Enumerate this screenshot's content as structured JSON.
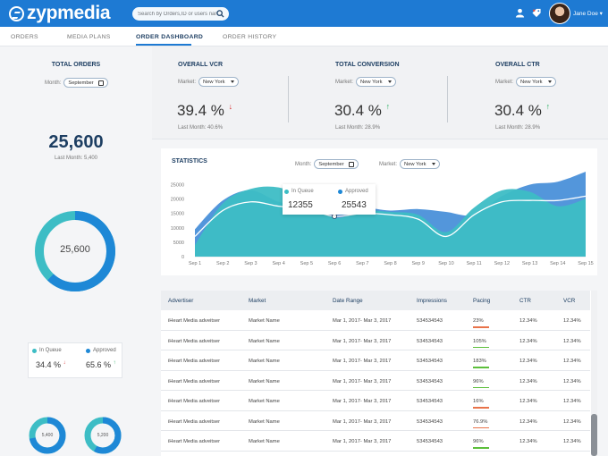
{
  "header": {
    "brand": "zypmedia",
    "search_placeholder": "Search by Orders,ID or users name",
    "username": "Jane Doe"
  },
  "tabs": [
    {
      "label": "ORDERS"
    },
    {
      "label": "MEDIA PLANS"
    },
    {
      "label": "ORDER DASHBOARD"
    },
    {
      "label": "ORDER HISTORY"
    }
  ],
  "left": {
    "title": "TOTAL ORDERS",
    "month_label": "Month:",
    "month_value": "September",
    "total": "25,600",
    "last_month": "Last Month: 5,400",
    "donut_value": "25,600",
    "donut_fraction": 0.62,
    "queue_label": "In Queue",
    "approved_label": "Approved",
    "queue_value": "34.4 %",
    "approved_value": "65.6 %",
    "small_donuts": [
      {
        "value": "5,400",
        "fraction": 0.72
      },
      {
        "value": "5,200",
        "fraction": 0.58
      }
    ]
  },
  "kpis": [
    {
      "title": "OVERALL VCR",
      "market_label": "Market:",
      "market": "New York",
      "value": "39.4 %",
      "trend": "down",
      "last": "Last Month: 40.6%"
    },
    {
      "title": "TOTAL CONVERSION",
      "market_label": "Market:",
      "market": "New York",
      "value": "30.4 %",
      "trend": "up",
      "last": "Last Month: 28.9%"
    },
    {
      "title": "OVERALL CTR",
      "market_label": "Market:",
      "market": "New York",
      "value": "30.4 %",
      "trend": "up",
      "last": "Last Month: 28.9%"
    }
  ],
  "statistics": {
    "title": "STATISTICS",
    "month_label": "Month:",
    "month_value": "September",
    "market_label": "Market:",
    "market_value": "New York",
    "tooltip": {
      "queue_label": "In Queue",
      "approved_label": "Approved",
      "queue_value": "12355",
      "approved_value": "25543"
    }
  },
  "chart_data": {
    "type": "area",
    "x": [
      "Sep 1",
      "Sep 2",
      "Sep 3",
      "Sep 4",
      "Sep 5",
      "Sep 6",
      "Sep 7",
      "Sep 8",
      "Sep 9",
      "Sep 10",
      "Sep 11",
      "Sep 12",
      "Sep 13",
      "Sep 14",
      "Sep 15"
    ],
    "yticks": [
      0,
      5000,
      10000,
      15000,
      20000,
      25000
    ],
    "ylim": [
      0,
      27000
    ],
    "series": [
      {
        "name": "In Queue",
        "color": "#4a90d9",
        "values": [
          9500,
          19500,
          23000,
          19000,
          17000,
          15500,
          17000,
          16000,
          16500,
          15500,
          14500,
          21000,
          25000,
          26000,
          29500
        ]
      },
      {
        "name": "Approved",
        "color": "#3dbdc5",
        "values": [
          4000,
          18500,
          23500,
          24000,
          20000,
          13500,
          16000,
          15500,
          14500,
          8500,
          17000,
          23000,
          22500,
          17500,
          20000
        ]
      }
    ],
    "line_series": [
      7000,
      16000,
      19000,
      17500,
      16500,
      14000,
      15000,
      14500,
      13000,
      7000,
      14500,
      19000,
      19500,
      19500,
      21000
    ]
  },
  "table": {
    "headers": [
      "Advertiser",
      "Market",
      "Date Range",
      "Impressions",
      "Pacing",
      "CTR",
      "VCR"
    ],
    "rows": [
      {
        "advertiser": "iHeart Media adveitser",
        "market": "Market Name",
        "date": "Mar 1, 2017- Mar 3, 2017",
        "impressions": "534534543",
        "pacing": "23%",
        "pace_color": "#e8734a",
        "ctr": "12.34%",
        "vcr": "12.34%"
      },
      {
        "advertiser": "iHeart Media adveitser",
        "market": "Market Name",
        "date": "Mar 1, 2017- Mar 3, 2017",
        "impressions": "534534543",
        "pacing": "105%",
        "pace_color": "#5cbf3b",
        "ctr": "12.34%",
        "vcr": "12.34%"
      },
      {
        "advertiser": "iHeart Media adveitser",
        "market": "Market Name",
        "date": "Mar 1, 2017- Mar 3, 2017",
        "impressions": "534534543",
        "pacing": "183%",
        "pace_color": "#5cbf3b",
        "ctr": "12.34%",
        "vcr": "12.34%"
      },
      {
        "advertiser": "iHeart Media adveitser",
        "market": "Market Name",
        "date": "Mar 1, 2017- Mar 3, 2017",
        "impressions": "534534543",
        "pacing": "96%",
        "pace_color": "#5cbf3b",
        "ctr": "12.34%",
        "vcr": "12.34%"
      },
      {
        "advertiser": "iHeart Media adveitser",
        "market": "Market Name",
        "date": "Mar 1, 2017- Mar 3, 2017",
        "impressions": "534534543",
        "pacing": "16%",
        "pace_color": "#e8734a",
        "ctr": "12.34%",
        "vcr": "12.34%"
      },
      {
        "advertiser": "iHeart Media adveitser",
        "market": "Market Name",
        "date": "Mar 1, 2017- Mar 3, 2017",
        "impressions": "534534543",
        "pacing": "76.9%",
        "pace_color": "#e8734a",
        "ctr": "12.34%",
        "vcr": "12.34%"
      },
      {
        "advertiser": "iHeart Media adveitser",
        "market": "Market Name",
        "date": "Mar 1, 2017- Mar 3, 2017",
        "impressions": "534534543",
        "pacing": "96%",
        "pace_color": "#5cbf3b",
        "ctr": "12.34%",
        "vcr": "12.34%"
      }
    ]
  },
  "colors": {
    "brand": "#1e7ad3",
    "navy": "#1d3e62",
    "teal": "#3dbdc5",
    "blue": "#1e88d6",
    "up": "#27ae60",
    "down": "#d62d2d"
  }
}
